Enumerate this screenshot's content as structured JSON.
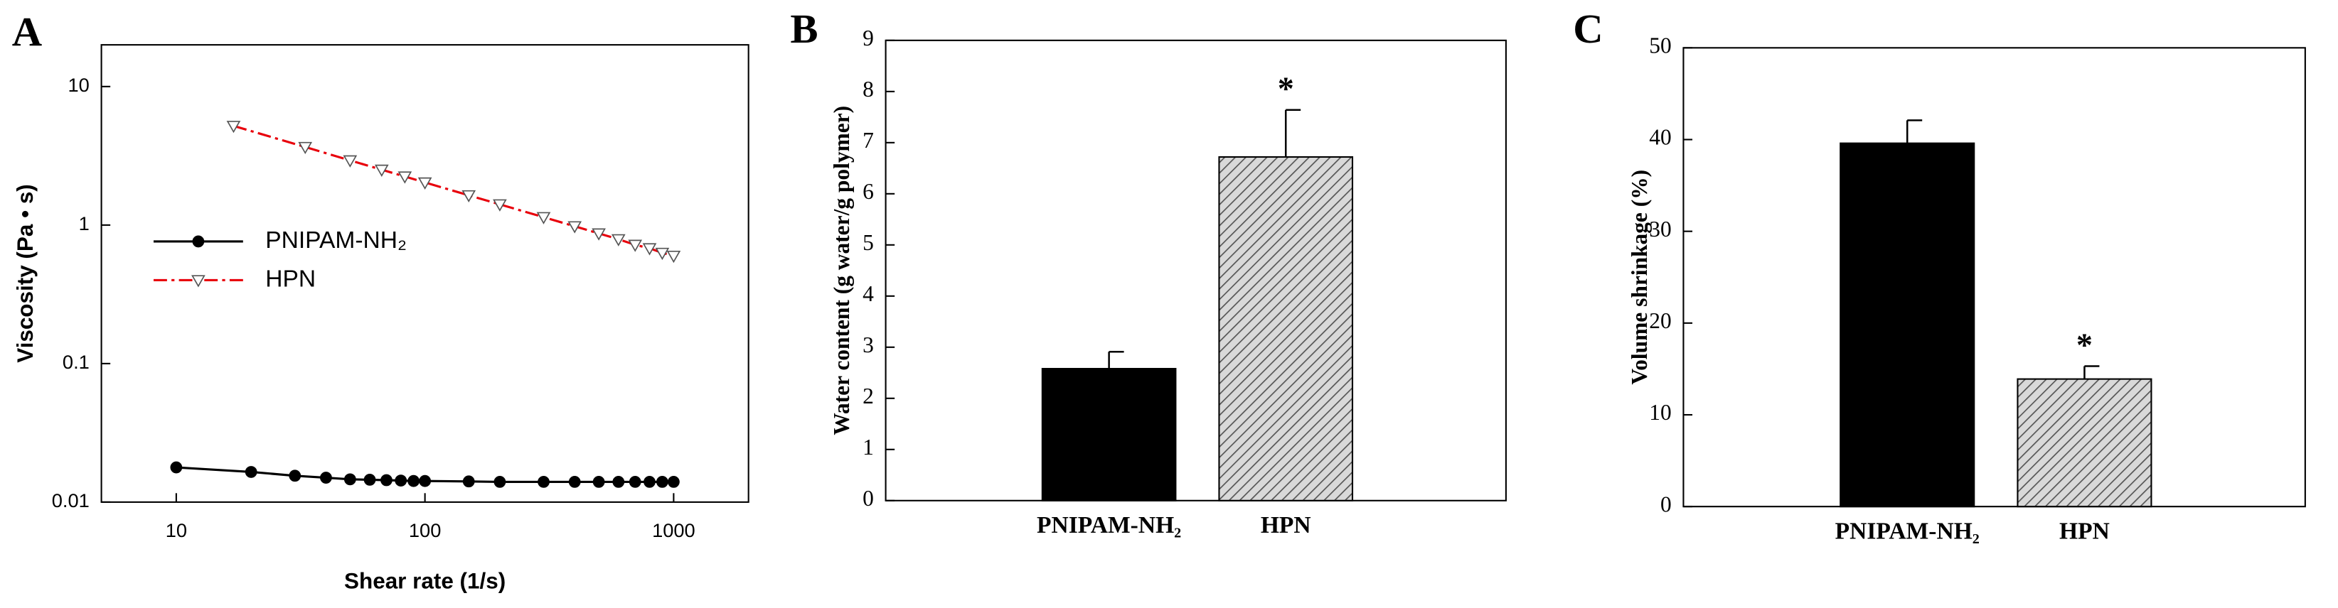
{
  "chart_data": [
    {
      "type": "line",
      "panel": "A",
      "xlabel": "Shear rate (1/s)",
      "ylabel": "Viscosity (Pa • s)",
      "xscale": "log",
      "yscale": "log",
      "xlim": [
        5,
        2000
      ],
      "ylim": [
        0.01,
        20
      ],
      "xticks": [
        10,
        100,
        1000
      ],
      "yticks": [
        0.01,
        0.1,
        1,
        10
      ],
      "legend": "left",
      "series": [
        {
          "name": "PNIPAM-NH₂",
          "color": "#000000",
          "marker": "circle",
          "dash": "solid",
          "x": [
            10,
            20,
            30,
            40,
            50,
            60,
            70,
            80,
            90,
            100,
            150,
            200,
            300,
            400,
            500,
            600,
            700,
            800,
            900,
            1000
          ],
          "values": [
            0.0178,
            0.0165,
            0.0155,
            0.015,
            0.0146,
            0.0145,
            0.0144,
            0.0143,
            0.0142,
            0.0142,
            0.0141,
            0.014,
            0.014,
            0.014,
            0.014,
            0.014,
            0.014,
            0.014,
            0.014,
            0.014
          ]
        },
        {
          "name": "HPN",
          "color": "#e8000b",
          "marker": "triangle-down",
          "dash": "dash-dot",
          "x": [
            17,
            33,
            50,
            67,
            83,
            100,
            150,
            200,
            300,
            400,
            500,
            600,
            700,
            800,
            900,
            1000
          ],
          "values": [
            5.2,
            3.66,
            2.93,
            2.51,
            2.24,
            2.03,
            1.64,
            1.41,
            1.14,
            0.98,
            0.87,
            0.79,
            0.72,
            0.68,
            0.63,
            0.6
          ]
        }
      ]
    },
    {
      "type": "bar",
      "panel": "B",
      "ylabel": "Water content (g water/g polymer)",
      "categories": [
        "PNIPAM-NH₂",
        "HPN"
      ],
      "values": [
        2.58,
        6.72
      ],
      "errors": [
        0.33,
        0.92
      ],
      "colors": [
        "#000000",
        "#bdbdbd"
      ],
      "hatch": [
        false,
        true
      ],
      "value_annotations": [
        null,
        "*"
      ],
      "ylim": [
        0,
        9
      ],
      "yticks": [
        0,
        1,
        2,
        3,
        4,
        5,
        6,
        7,
        8,
        9
      ]
    },
    {
      "type": "bar",
      "panel": "C",
      "ylabel": "Volume shrinkage (%)",
      "categories": [
        "PNIPAM-NH₂",
        "HPN"
      ],
      "values": [
        39.6,
        13.9
      ],
      "errors": [
        2.5,
        1.4
      ],
      "colors": [
        "#000000",
        "#bdbdbd"
      ],
      "hatch": [
        false,
        true
      ],
      "value_annotations": [
        null,
        "*"
      ],
      "ylim": [
        0,
        50
      ],
      "yticks": [
        0,
        10,
        20,
        30,
        40,
        50
      ]
    }
  ]
}
